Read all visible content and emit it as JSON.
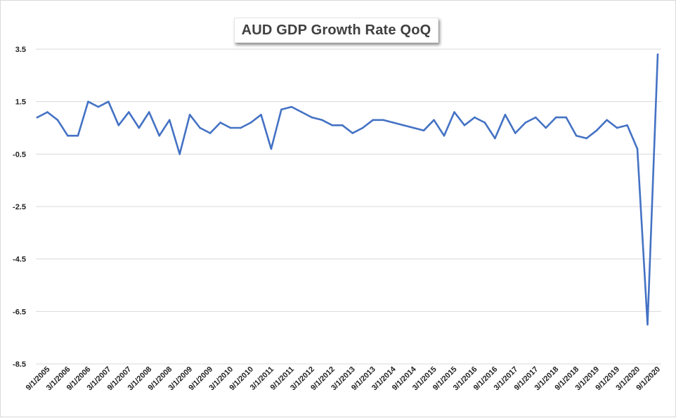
{
  "chart_data": {
    "type": "line",
    "title": "AUD GDP Growth Rate QoQ",
    "xlabel": "",
    "ylabel": "",
    "ylim": [
      -8.5,
      3.5
    ],
    "yticks": [
      3.5,
      1.5,
      -0.5,
      -2.5,
      -4.5,
      -6.5,
      -8.5
    ],
    "ytick_labels": [
      "3.5",
      "1.5",
      "-0.5",
      "-2.5",
      "-4.5",
      "-6.5",
      "-8.5"
    ],
    "grid": true,
    "legend": "none",
    "x_tick_labels": [
      "9/1/2005",
      "3/1/2006",
      "9/1/2006",
      "3/1/2007",
      "9/1/2007",
      "3/1/2008",
      "9/1/2008",
      "3/1/2009",
      "9/1/2009",
      "3/1/2010",
      "9/1/2010",
      "3/1/2011",
      "9/1/2011",
      "3/1/2012",
      "9/1/2012",
      "3/1/2013",
      "9/1/2013",
      "3/1/2014",
      "9/1/2014",
      "3/1/2015",
      "9/1/2015",
      "3/1/2016",
      "9/1/2016",
      "3/1/2017",
      "9/1/2017",
      "3/1/2018",
      "9/1/2018",
      "3/1/2019",
      "9/1/2019",
      "3/1/2020",
      "9/1/2020"
    ],
    "series": [
      {
        "color": "#4472C4",
        "x": [
          "6/1/2005",
          "9/1/2005",
          "12/1/2005",
          "3/1/2006",
          "6/1/2006",
          "9/1/2006",
          "12/1/2006",
          "3/1/2007",
          "6/1/2007",
          "9/1/2007",
          "12/1/2007",
          "3/1/2008",
          "6/1/2008",
          "9/1/2008",
          "12/1/2008",
          "3/1/2009",
          "6/1/2009",
          "9/1/2009",
          "12/1/2009",
          "3/1/2010",
          "6/1/2010",
          "9/1/2010",
          "12/1/2010",
          "3/1/2011",
          "6/1/2011",
          "9/1/2011",
          "12/1/2011",
          "3/1/2012",
          "6/1/2012",
          "9/1/2012",
          "12/1/2012",
          "3/1/2013",
          "6/1/2013",
          "9/1/2013",
          "12/1/2013",
          "3/1/2014",
          "6/1/2014",
          "9/1/2014",
          "12/1/2014",
          "3/1/2015",
          "6/1/2015",
          "9/1/2015",
          "12/1/2015",
          "3/1/2016",
          "6/1/2016",
          "9/1/2016",
          "12/1/2016",
          "3/1/2017",
          "6/1/2017",
          "9/1/2017",
          "12/1/2017",
          "3/1/2018",
          "6/1/2018",
          "9/1/2018",
          "12/1/2018",
          "3/1/2019",
          "6/1/2019",
          "9/1/2019",
          "12/1/2019",
          "3/1/2020",
          "6/1/2020",
          "9/1/2020"
        ],
        "values": [
          0.9,
          1.1,
          0.8,
          0.2,
          0.2,
          1.5,
          1.3,
          1.5,
          0.6,
          1.1,
          0.5,
          1.1,
          0.2,
          0.8,
          -0.5,
          1.0,
          0.5,
          0.3,
          0.7,
          0.5,
          0.5,
          0.7,
          1.0,
          -0.3,
          1.2,
          1.3,
          1.1,
          0.9,
          0.8,
          0.6,
          0.6,
          0.3,
          0.5,
          0.8,
          0.8,
          0.7,
          0.6,
          0.5,
          0.4,
          0.8,
          0.2,
          1.1,
          0.6,
          0.9,
          0.7,
          0.1,
          1.0,
          0.3,
          0.7,
          0.9,
          0.5,
          0.9,
          0.9,
          0.2,
          0.1,
          0.4,
          0.8,
          0.5,
          0.6,
          -0.3,
          -7.0,
          3.3
        ]
      }
    ]
  }
}
